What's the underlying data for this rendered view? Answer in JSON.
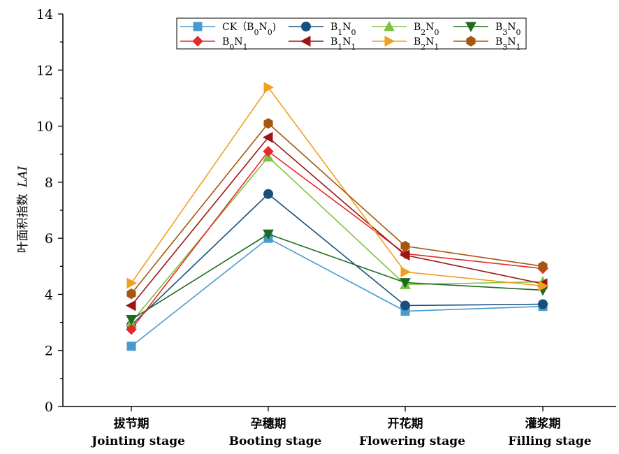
{
  "chart_data": {
    "type": "line",
    "ylabel_cn": "叶面积指数",
    "ylabel_en": "LAI",
    "ylim": [
      0,
      14
    ],
    "yticks": [
      "0",
      "2",
      "4",
      "6",
      "8",
      "10",
      "12",
      "14"
    ],
    "categories": [
      {
        "cn": "拔节期",
        "en": "Jointing stage"
      },
      {
        "cn": "孕穗期",
        "en": "Booting stage"
      },
      {
        "cn": "开花期",
        "en": "Flowering stage"
      },
      {
        "cn": "灌浆期",
        "en": "Filling stage"
      }
    ],
    "series": [
      {
        "name": "CK（B0N0)",
        "color": "#4a9acd",
        "marker": "square",
        "values": [
          2.15,
          6.0,
          3.4,
          3.57
        ]
      },
      {
        "name": "B1N0",
        "color": "#184f7d",
        "marker": "circle",
        "values": [
          2.9,
          7.58,
          3.6,
          3.65
        ]
      },
      {
        "name": "B2N0",
        "color": "#7fc241",
        "marker": "triangle-up",
        "values": [
          3.0,
          8.9,
          4.35,
          4.45
        ]
      },
      {
        "name": "B3N0",
        "color": "#1e6b1f",
        "marker": "triangle-down",
        "values": [
          3.1,
          6.15,
          4.42,
          4.15
        ]
      },
      {
        "name": "B0N1",
        "color": "#e8282b",
        "marker": "diamond",
        "values": [
          2.75,
          9.1,
          5.45,
          4.92
        ]
      },
      {
        "name": "B1N1",
        "color": "#9b1515",
        "marker": "triangle-left",
        "values": [
          3.6,
          9.6,
          5.4,
          4.38
        ]
      },
      {
        "name": "B2N1",
        "color": "#f0a020",
        "marker": "triangle-right",
        "values": [
          4.4,
          11.38,
          4.8,
          4.3
        ]
      },
      {
        "name": "B3N1",
        "color": "#a5570f",
        "marker": "hexagon",
        "values": [
          4.02,
          10.1,
          5.72,
          5.0
        ]
      }
    ],
    "legend": {
      "placement": "top-center",
      "entries": [
        {
          "label": "CK（B0N0)",
          "series": 0
        },
        {
          "label": "B1N0",
          "series": 1
        },
        {
          "label": "B2N0",
          "series": 2
        },
        {
          "label": "B3N0",
          "series": 3
        },
        {
          "label": "B0N1",
          "series": 4
        },
        {
          "label": "B1N1",
          "series": 5
        },
        {
          "label": "B2N1",
          "series": 6
        },
        {
          "label": "B3N1",
          "series": 7
        }
      ]
    },
    "grid": false
  }
}
